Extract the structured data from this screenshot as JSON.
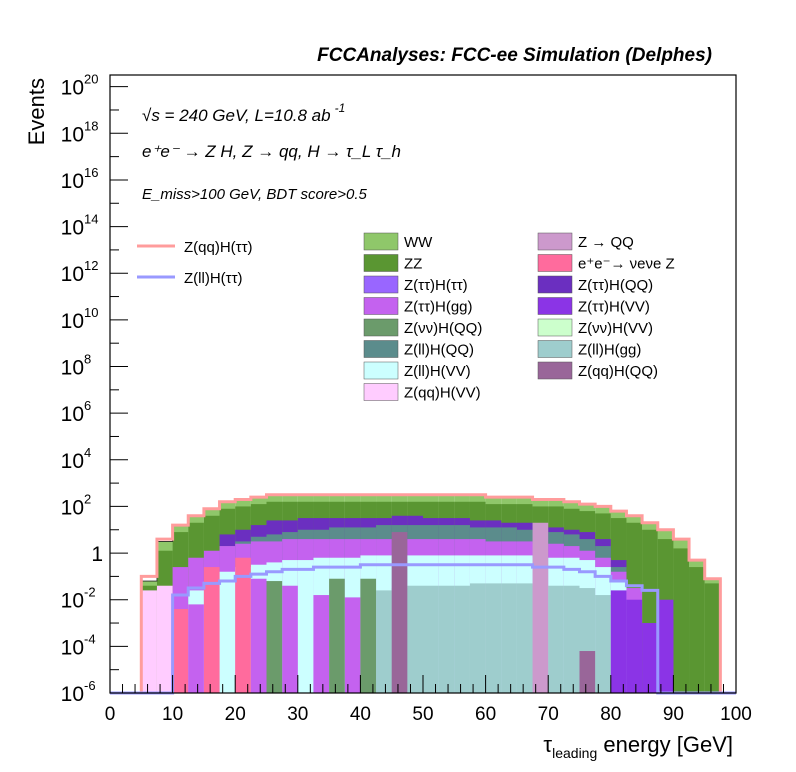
{
  "header": {
    "title": "FCCAnalyses: FCC-ee Simulation (Delphes)"
  },
  "chart_data": {
    "type": "bar",
    "stacked": true,
    "log_scale_y": true,
    "xlabel": "τ_leading energy [GeV]",
    "xlabel_main": "τ",
    "xlabel_sub": "leading",
    "xlabel_rest": " energy [GeV]",
    "ylabel": "Events",
    "xlim": [
      0,
      100
    ],
    "ylim_exp": [
      -6,
      20.5
    ],
    "x_ticks": [
      "0",
      "10",
      "20",
      "30",
      "40",
      "50",
      "60",
      "70",
      "80",
      "90",
      "100"
    ],
    "y_ticks": [
      {
        "exp": 20,
        "label": "10",
        "sup": "20"
      },
      {
        "exp": 18,
        "label": "10",
        "sup": "18"
      },
      {
        "exp": 16,
        "label": "10",
        "sup": "16"
      },
      {
        "exp": 14,
        "label": "10",
        "sup": "14"
      },
      {
        "exp": 12,
        "label": "10",
        "sup": "12"
      },
      {
        "exp": 10,
        "label": "10",
        "sup": "10"
      },
      {
        "exp": 8,
        "label": "10",
        "sup": "8"
      },
      {
        "exp": 6,
        "label": "10",
        "sup": "6"
      },
      {
        "exp": 4,
        "label": "10",
        "sup": "4"
      },
      {
        "exp": 2,
        "label": "10",
        "sup": "2"
      },
      {
        "exp": 0,
        "label": "1",
        "sup": ""
      },
      {
        "exp": -2,
        "label": "10",
        "sup": "-2"
      },
      {
        "exp": -4,
        "label": "10",
        "sup": "-4"
      },
      {
        "exp": -6,
        "label": "10",
        "sup": "-6"
      }
    ],
    "annotations": {
      "line1": "√s = 240 GeV, L=10.8 ab",
      "line1_sup": "-1",
      "line2": "e⁺e⁻ → Z H, Z → qq, H → τ_L τ_h",
      "line3": "E_miss>100 GeV, BDT score>0.5"
    },
    "bins": {
      "start": 0,
      "width": 2.5,
      "count": 40
    },
    "stack_top_exp": [
      -6,
      -6,
      -1.2,
      0.5,
      1.2,
      1.6,
      1.9,
      2.2,
      2.3,
      2.4,
      2.5,
      2.5,
      2.5,
      2.5,
      2.5,
      2.5,
      2.5,
      2.5,
      2.5,
      2.5,
      2.5,
      2.5,
      2.5,
      2.5,
      2.4,
      2.4,
      2.4,
      2.3,
      2.3,
      2.2,
      2.1,
      2.0,
      1.8,
      1.6,
      1.3,
      1.0,
      0.6,
      -0.3,
      -1.1,
      -6
    ],
    "components": [
      {
        "name": "WW",
        "color": "#8fc76a",
        "top_exp": [
          -6,
          -6,
          -1.2,
          0.5,
          1.2,
          1.6,
          1.9,
          2.2,
          2.3,
          2.4,
          2.5,
          2.5,
          2.5,
          2.5,
          2.5,
          2.5,
          2.5,
          2.5,
          2.5,
          2.5,
          2.5,
          2.5,
          2.5,
          2.5,
          2.4,
          2.4,
          2.4,
          2.3,
          2.3,
          2.2,
          2.1,
          2.0,
          1.8,
          1.6,
          1.3,
          1.0,
          0.6,
          -0.3,
          -1.1,
          -6
        ]
      },
      {
        "name": "ZZ",
        "color": "#5a9632",
        "top_exp": [
          -6,
          -6,
          -1.4,
          0.1,
          0.9,
          1.3,
          1.6,
          1.9,
          2.0,
          2.1,
          2.2,
          2.2,
          2.2,
          2.2,
          2.2,
          2.2,
          2.2,
          2.2,
          2.2,
          2.2,
          2.2,
          2.2,
          2.2,
          2.2,
          2.1,
          2.1,
          2.1,
          2.0,
          2.0,
          1.9,
          1.8,
          1.7,
          1.5,
          1.3,
          1.0,
          0.6,
          0.2,
          -0.6,
          -1.3,
          -6
        ]
      },
      {
        "name": "Z(ττ)H(QQ)",
        "color": "#6b2fc0",
        "top_exp": [
          -6,
          -6,
          -6,
          -6,
          -6,
          -6,
          -0.3,
          0.8,
          1.0,
          1.2,
          1.4,
          1.4,
          1.5,
          1.5,
          1.5,
          1.5,
          1.5,
          1.5,
          1.6,
          1.6,
          1.5,
          1.5,
          1.5,
          1.4,
          1.4,
          1.3,
          1.3,
          1.2,
          1.1,
          1.0,
          0.9,
          0.6,
          -0.3,
          -6,
          -6,
          -6,
          -6,
          -6,
          -6,
          -6
        ]
      },
      {
        "name": "Z(ll)H(QQ)",
        "color": "#5b8c8c",
        "top_exp": [
          -6,
          -6,
          -6,
          -6,
          -6,
          -6,
          -6,
          0.3,
          0.5,
          0.7,
          0.8,
          0.9,
          1.0,
          1.0,
          1.1,
          1.1,
          1.1,
          1.2,
          1.2,
          1.2,
          1.2,
          1.2,
          1.2,
          1.1,
          1.1,
          1.1,
          1.0,
          1.0,
          0.9,
          0.8,
          0.6,
          0.3,
          -0.6,
          -6,
          -6,
          -6,
          -6,
          -6,
          -6,
          -6
        ]
      },
      {
        "name": "Z(ττ)H(gg)",
        "color": "#c462ef",
        "top_exp": [
          -6,
          -6,
          -6,
          -6,
          -0.6,
          -0.2,
          0.1,
          0.3,
          0.4,
          0.5,
          0.5,
          0.6,
          0.6,
          0.6,
          0.6,
          0.6,
          0.6,
          0.6,
          0.6,
          0.6,
          0.6,
          0.6,
          0.6,
          0.6,
          0.5,
          0.5,
          0.5,
          0.4,
          0.4,
          0.3,
          0.1,
          -0.2,
          -0.8,
          -1.5,
          -6,
          -6,
          -6,
          -6,
          -6,
          -6
        ]
      },
      {
        "name": "Z(ll)H(VV)",
        "color": "#ccffff",
        "top_exp": [
          -6,
          -6,
          -6,
          -6,
          -6,
          -1.6,
          -1.2,
          -0.8,
          -0.6,
          -0.5,
          -0.4,
          -0.3,
          -0.3,
          -0.2,
          -0.2,
          -0.2,
          -0.1,
          -0.1,
          -0.1,
          -0.1,
          -0.1,
          -0.1,
          -0.1,
          -0.1,
          -0.1,
          -0.1,
          -0.1,
          -0.2,
          -0.2,
          -0.2,
          -0.3,
          -0.6,
          -1.2,
          -6,
          -6,
          -6,
          -6,
          -6,
          -6,
          -6
        ]
      },
      {
        "name": "Z(ll)H(gg)",
        "color": "#9ecdcd",
        "top_exp": [
          -6,
          -6,
          -6,
          -6,
          -6,
          -6,
          -6,
          -6,
          -6,
          -6,
          -6,
          -6,
          -6,
          -6,
          -6,
          -6,
          -6,
          -1.6,
          -1.5,
          -1.4,
          -1.4,
          -1.4,
          -1.4,
          -1.3,
          -1.3,
          -1.3,
          -1.3,
          -1.4,
          -1.4,
          -1.4,
          -1.5,
          -1.8,
          -6,
          -6,
          -6,
          -6,
          -6,
          -6,
          -6,
          -6
        ]
      },
      {
        "name": "Z(ττ)H(VV)",
        "color": "#8b34e6",
        "top_exp": [
          -6,
          -6,
          -6,
          -6,
          -6,
          -6,
          -6,
          -6,
          -6,
          -6,
          -6,
          -6,
          -6,
          -6,
          -6,
          -6,
          -6,
          -6,
          -6,
          -6,
          -6,
          -6,
          -6,
          -6,
          -6,
          -6,
          -6,
          -6,
          -6,
          -6,
          -6,
          -6,
          -1.6,
          -2.0,
          -3.0,
          -2.8,
          -6,
          -6,
          -6,
          -6
        ]
      },
      {
        "name": "Z(qq)H(VV)",
        "color": "#ffccff",
        "top_exp": [
          -6,
          -6,
          -1.6,
          -1.4,
          -6,
          -6,
          -6,
          -6,
          -6,
          -6,
          -6,
          -6,
          -6,
          -6,
          -6,
          -6,
          -6,
          -6,
          -6,
          -6,
          -6,
          -6,
          -6,
          -6,
          -6,
          -6,
          -6,
          -6,
          -6,
          -6,
          -6,
          -6,
          -6,
          -6,
          -6,
          -6,
          -6,
          -6,
          -6,
          -6
        ]
      }
    ],
    "spikes": [
      {
        "name": "e⁺e⁻→ νeνe Z",
        "color": "#ff6b9d",
        "x0": 10,
        "x1": 12.5,
        "top_exp": -2.4
      },
      {
        "name": "e⁺e⁻→ νeνe Z",
        "color": "#ff6b9d",
        "x0": 15,
        "x1": 17.5,
        "top_exp": -0.6
      },
      {
        "name": "e⁺e⁻→ νeνe Z",
        "color": "#ff6b9d",
        "x0": 20,
        "x1": 22.5,
        "top_exp": -0.2
      },
      {
        "name": "Z(ττ)H(gg)",
        "color": "#c462ef",
        "x0": 12.5,
        "x1": 15,
        "top_exp": -2.2
      },
      {
        "name": "Z(ττ)H(gg)",
        "color": "#c462ef",
        "x0": 22.5,
        "x1": 25,
        "top_exp": -1.1
      },
      {
        "name": "Z(ττ)H(gg)",
        "color": "#c462ef",
        "x0": 27.5,
        "x1": 30,
        "top_exp": -1.4
      },
      {
        "name": "Z(ττ)H(gg)",
        "color": "#c462ef",
        "x0": 32.5,
        "x1": 35,
        "top_exp": -1.8
      },
      {
        "name": "Z(ττ)H(gg)",
        "color": "#c462ef",
        "x0": 37.5,
        "x1": 40,
        "top_exp": -1.9
      },
      {
        "name": "Z(νν)H(QQ)",
        "color": "#6b9b6b",
        "x0": 25,
        "x1": 27.5,
        "top_exp": -1.2
      },
      {
        "name": "Z(νν)H(QQ)",
        "color": "#6b9b6b",
        "x0": 35,
        "x1": 37.5,
        "top_exp": -1.1
      },
      {
        "name": "Z(νν)H(QQ)",
        "color": "#6b9b6b",
        "x0": 40,
        "x1": 42.5,
        "top_exp": -1.1
      },
      {
        "name": "Z(ll)H(gg)",
        "color": "#9ecdcd",
        "x0": 42.5,
        "x1": 45,
        "top_exp": -1.8
      },
      {
        "name": "Z(qq)H(QQ)",
        "color": "#996699",
        "x0": 45,
        "x1": 47.5,
        "top_exp": 0.9
      },
      {
        "name": "Z(qq)H(QQ)",
        "color": "#996699",
        "x0": 75,
        "x1": 77.5,
        "top_exp": -4.2
      },
      {
        "name": "Z → QQ",
        "color": "#cc99cc",
        "x0": 67.5,
        "x1": 70,
        "top_exp": 1.3
      },
      {
        "name": "Z(ττ)H(VV)",
        "color": "#8b34e6",
        "x0": 87.5,
        "x1": 90,
        "top_exp": -2.0
      }
    ],
    "lines": [
      {
        "name": "Z(qq)H(ττ)",
        "color": "#ff9c9c",
        "y_exp": [
          -6,
          -6,
          -1.0,
          0.6,
          1.2,
          1.6,
          1.9,
          2.2,
          2.3,
          2.4,
          2.5,
          2.5,
          2.5,
          2.5,
          2.5,
          2.5,
          2.5,
          2.5,
          2.5,
          2.5,
          2.5,
          2.5,
          2.5,
          2.5,
          2.4,
          2.4,
          2.4,
          2.3,
          2.3,
          2.2,
          2.1,
          2.0,
          1.8,
          1.6,
          1.3,
          1.0,
          0.6,
          -0.3,
          -1.1,
          -6
        ]
      },
      {
        "name": "Z(ll)H(ττ)",
        "color": "#9999ff",
        "y_exp": [
          -6,
          -6,
          -6,
          -6,
          -1.8,
          -1.5,
          -1.3,
          -1.2,
          -1.0,
          -0.9,
          -0.8,
          -0.7,
          -0.7,
          -0.6,
          -0.6,
          -0.6,
          -0.5,
          -0.5,
          -0.5,
          -0.5,
          -0.5,
          -0.5,
          -0.5,
          -0.5,
          -0.5,
          -0.5,
          -0.5,
          -0.6,
          -0.6,
          -0.7,
          -0.8,
          -1.0,
          -1.2,
          -1.4,
          -1.6,
          -6,
          -6,
          -6,
          -6,
          -6
        ]
      }
    ],
    "legend_lines": [
      {
        "name": "Z(qq)H(ττ)",
        "color": "#ff9c9c"
      },
      {
        "name": "Z(ll)H(ττ)",
        "color": "#9999ff"
      }
    ],
    "legend_boxes": [
      {
        "name": "WW",
        "color": "#8fc76a"
      },
      {
        "name": "Z → QQ",
        "color": "#cc99cc"
      },
      {
        "name": "ZZ",
        "color": "#5a9632"
      },
      {
        "name": "e⁺e⁻→ νeνe Z",
        "color": "#ff6b9d"
      },
      {
        "name": "Z(ττ)H(ττ)",
        "color": "#9966ff"
      },
      {
        "name": "Z(ττ)H(QQ)",
        "color": "#6b2fc0"
      },
      {
        "name": "Z(ττ)H(gg)",
        "color": "#c462ef"
      },
      {
        "name": "Z(ττ)H(VV)",
        "color": "#8b34e6"
      },
      {
        "name": "Z(νν)H(QQ)",
        "color": "#6b9b6b"
      },
      {
        "name": "Z(νν)H(VV)",
        "color": "#ccffcc"
      },
      {
        "name": "Z(ll)H(QQ)",
        "color": "#5b8c8c"
      },
      {
        "name": "Z(ll)H(gg)",
        "color": "#9ecdcd"
      },
      {
        "name": "Z(ll)H(VV)",
        "color": "#ccffff"
      },
      {
        "name": "Z(qq)H(QQ)",
        "color": "#996699"
      },
      {
        "name": "Z(qq)H(VV)",
        "color": "#ffccff"
      }
    ]
  }
}
